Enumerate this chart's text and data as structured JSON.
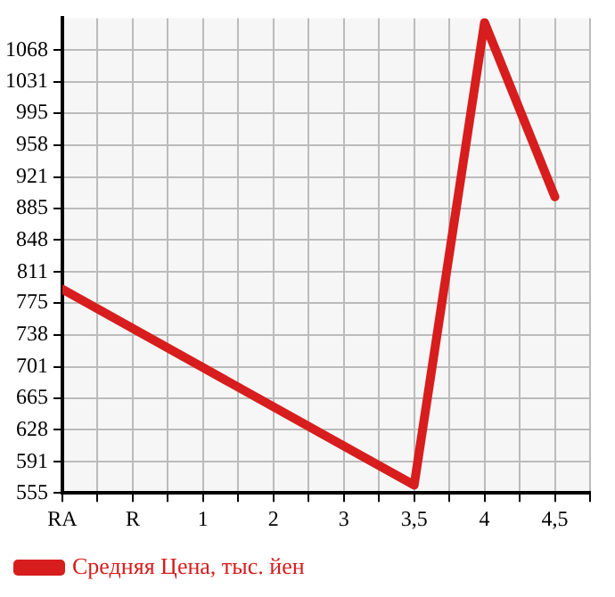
{
  "chart_data": {
    "type": "line",
    "categories": [
      "RA",
      "R",
      "1",
      "2",
      "3",
      "3,5",
      "4",
      "4,5"
    ],
    "series": [
      {
        "name": "Средняя Цена, тыс. йен",
        "color": "#d71d1d",
        "values": [
          791,
          null,
          null,
          null,
          null,
          564,
          1100,
          898
        ]
      }
    ],
    "ylim": [
      555,
      1105
    ],
    "yticks": [
      555,
      591,
      628,
      665,
      701,
      738,
      775,
      811,
      848,
      885,
      921,
      958,
      995,
      1031,
      1068
    ],
    "grid": true,
    "legend": "bottom",
    "marker": "none"
  }
}
